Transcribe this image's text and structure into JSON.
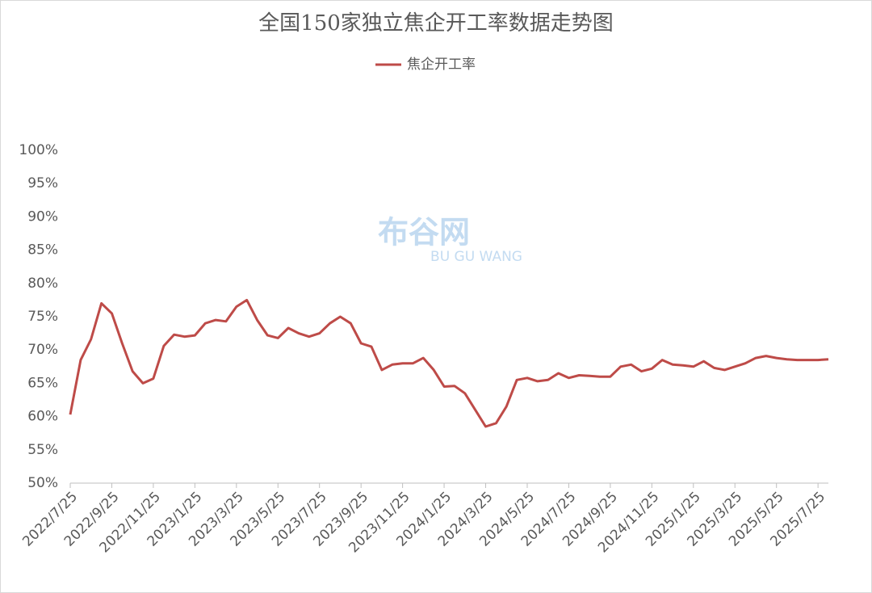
{
  "chart_data": {
    "type": "line",
    "title": "全国150家独立焦企开工率数据走势图",
    "watermark": [
      "布谷网",
      "BU GU WANG"
    ],
    "categories": [
      "2022/7/25",
      null,
      null,
      null,
      "2022/9/25",
      null,
      null,
      null,
      "2022/11/25",
      null,
      null,
      null,
      "2023/1/25",
      null,
      null,
      null,
      "2023/3/25",
      null,
      null,
      null,
      "2023/5/25",
      null,
      null,
      null,
      "2023/7/25",
      null,
      null,
      null,
      "2023/9/25",
      null,
      null,
      null,
      "2023/11/25",
      null,
      null,
      null,
      "2024/1/25",
      null,
      null,
      null,
      "2024/3/25",
      null,
      null,
      null,
      "2024/5/25",
      null,
      null,
      null,
      "2024/7/25",
      null,
      null,
      null,
      "2024/9/25",
      null,
      null,
      null,
      "2024/11/25",
      null,
      null,
      null,
      "2025/1/25",
      null,
      null,
      null,
      "2025/3/25",
      null,
      null,
      null,
      "2025/5/25",
      null,
      null,
      null,
      "2025/7/25",
      null
    ],
    "series": [
      {
        "name": "焦企开工率",
        "color": "#be4b48",
        "values": [
          60.3,
          68.5,
          71.6,
          77.0,
          75.5,
          71.0,
          66.8,
          65.0,
          65.7,
          70.6,
          72.3,
          72.0,
          72.2,
          74.0,
          74.5,
          74.3,
          76.5,
          77.5,
          74.5,
          72.2,
          71.8,
          73.3,
          72.5,
          72.0,
          72.5,
          74.0,
          75.0,
          74.0,
          71.0,
          70.5,
          67.0,
          67.8,
          68.0,
          68.0,
          68.8,
          67.0,
          64.5,
          64.6,
          63.5,
          61.0,
          58.5,
          59.0,
          61.5,
          65.5,
          65.8,
          65.3,
          65.5,
          66.5,
          65.8,
          66.2,
          66.1,
          66.0,
          66.0,
          67.5,
          67.8,
          66.8,
          67.2,
          68.5,
          67.8,
          67.7,
          67.5,
          68.3,
          67.3,
          67.0,
          67.5,
          68.0,
          68.8,
          69.1,
          68.8,
          68.6,
          68.5,
          68.5,
          68.5,
          68.6
        ]
      }
    ],
    "ylim": [
      50,
      100
    ],
    "yticks": [
      {
        "value": 50,
        "label": "50%"
      },
      {
        "value": 55,
        "label": "55%"
      },
      {
        "value": 60,
        "label": "60%"
      },
      {
        "value": 65,
        "label": "65%"
      },
      {
        "value": 70,
        "label": "70%"
      },
      {
        "value": 75,
        "label": "75%"
      },
      {
        "value": 80,
        "label": "80%"
      },
      {
        "value": 85,
        "label": "85%"
      },
      {
        "value": 90,
        "label": "90%"
      },
      {
        "value": 95,
        "label": "95%"
      },
      {
        "value": 100,
        "label": "100%"
      }
    ],
    "grid": false,
    "legend": "top"
  }
}
